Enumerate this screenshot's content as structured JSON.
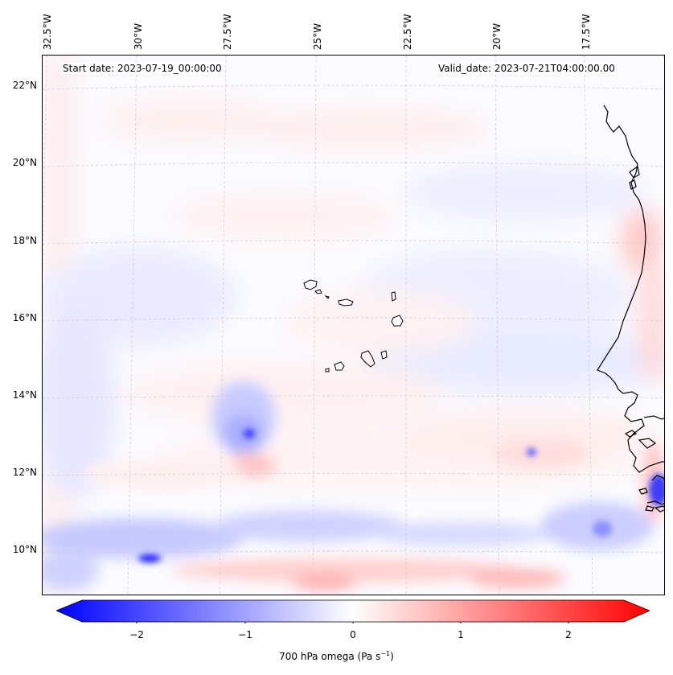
{
  "map": {
    "lon_ticks": [
      "32.5°W",
      "30°W",
      "27.5°W",
      "25°W",
      "22.5°W",
      "20°W",
      "17.5°W"
    ],
    "lat_ticks": [
      "22°N",
      "20°N",
      "18°N",
      "16°N",
      "14°N",
      "12°N",
      "10°N"
    ],
    "start_date": "Start date: 2023-07-19_00:00:00",
    "valid_date": "Valid_date: 2023-07-21T04:00:00.00",
    "field": "700 hPa omega",
    "colormap": "bwr",
    "colors": {
      "negative": "#0000ff",
      "zero": "#ffffff",
      "positive": "#ff0000",
      "coastline": "#000000",
      "grid": "#c8c8c8"
    }
  },
  "colorbar": {
    "ticks": [
      "−2",
      "−1",
      "0",
      "1",
      "2"
    ],
    "range": [
      -2.75,
      2.75
    ],
    "label": "700 hPa omega (Pa s",
    "label_exp": "−1",
    "label_close": ")"
  }
}
